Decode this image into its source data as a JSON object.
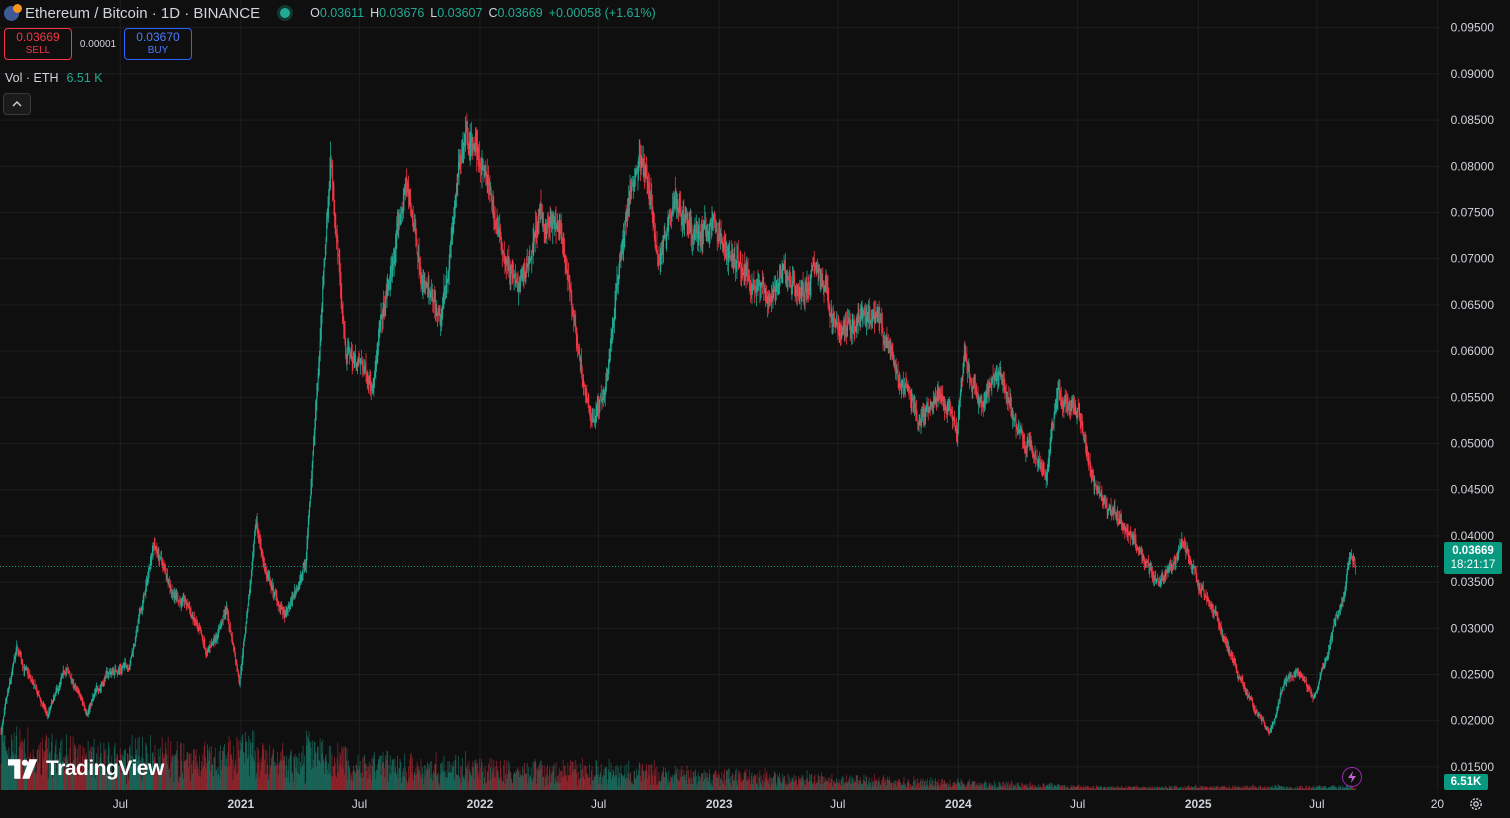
{
  "header": {
    "title": "Ethereum / Bitcoin · 1D · BINANCE",
    "ohlc": {
      "o_label": "O",
      "o_value": "0.03611",
      "h_label": "H",
      "h_value": "0.03676",
      "l_label": "L",
      "l_value": "0.03607",
      "c_label": "C",
      "c_value": "0.03669",
      "change": "+0.00058 (+1.61%)"
    }
  },
  "trade": {
    "sell_price": "0.03669",
    "sell_label": "SELL",
    "spread": "0.00001",
    "buy_price": "0.03670",
    "buy_label": "BUY"
  },
  "volume_legend": {
    "label": "Vol · ETH",
    "value": "6.51 K"
  },
  "logo": {
    "text": "TradingView"
  },
  "price_label": {
    "price": "0.03669",
    "countdown": "18:21:17"
  },
  "volume_label": "6.51K",
  "colors": {
    "background": "#0f0f0f",
    "up": "#22ab94",
    "down": "#f23645",
    "grid": "#1e1e1e",
    "axis_text": "#d1d4dc",
    "last_price": "#089981"
  },
  "icons": [
    "coin-icon",
    "live-dot-icon",
    "chevron-up-icon",
    "tradingview-logo-icon",
    "lightning-icon",
    "gear-icon"
  ],
  "chart_data": {
    "type": "candlestick",
    "symbol": "Ethereum / Bitcoin",
    "interval": "1D",
    "exchange": "BINANCE",
    "y_axis_ticks": [
      "0.09500",
      "0.09000",
      "0.08500",
      "0.08000",
      "0.07500",
      "0.07000",
      "0.06500",
      "0.06000",
      "0.05500",
      "0.05000",
      "0.04500",
      "0.04000",
      "0.03500",
      "0.03000",
      "0.02500",
      "0.02000",
      "0.01500"
    ],
    "y_tick_values": [
      0.095,
      0.09,
      0.085,
      0.08,
      0.075,
      0.07,
      0.065,
      0.06,
      0.055,
      0.05,
      0.045,
      0.04,
      0.035,
      0.03,
      0.025,
      0.02,
      0.015
    ],
    "ylim": [
      0.0125,
      0.098
    ],
    "x_ticks": [
      {
        "label": "Jul",
        "date": "2020-07-01"
      },
      {
        "label": "2021",
        "date": "2021-01-01"
      },
      {
        "label": "Jul",
        "date": "2021-07-01"
      },
      {
        "label": "2022",
        "date": "2022-01-01"
      },
      {
        "label": "Jul",
        "date": "2022-07-01"
      },
      {
        "label": "2023",
        "date": "2023-01-01"
      },
      {
        "label": "Jul",
        "date": "2023-07-01"
      },
      {
        "label": "2024",
        "date": "2024-01-01"
      },
      {
        "label": "Jul",
        "date": "2024-07-01"
      },
      {
        "label": "2025",
        "date": "2025-01-01"
      },
      {
        "label": "Jul",
        "date": "2025-07-01"
      },
      {
        "label": "20",
        "date": "2026-01-01"
      }
    ],
    "xlim": [
      "2020-01-01",
      "2026-01-01"
    ],
    "last_price": 0.03669,
    "close_series": [
      {
        "date": "2020-01-01",
        "close": 0.0188
      },
      {
        "date": "2020-01-25",
        "close": 0.0275
      },
      {
        "date": "2020-03-12",
        "close": 0.0205
      },
      {
        "date": "2020-04-10",
        "close": 0.0255
      },
      {
        "date": "2020-05-10",
        "close": 0.021
      },
      {
        "date": "2020-06-10",
        "close": 0.025
      },
      {
        "date": "2020-07-15",
        "close": 0.0262
      },
      {
        "date": "2020-08-10",
        "close": 0.0345
      },
      {
        "date": "2020-08-20",
        "close": 0.0395
      },
      {
        "date": "2020-09-20",
        "close": 0.034
      },
      {
        "date": "2020-10-15",
        "close": 0.032
      },
      {
        "date": "2020-11-10",
        "close": 0.027
      },
      {
        "date": "2020-12-10",
        "close": 0.032
      },
      {
        "date": "2020-12-30",
        "close": 0.0245
      },
      {
        "date": "2021-01-25",
        "close": 0.041
      },
      {
        "date": "2021-02-10",
        "close": 0.0355
      },
      {
        "date": "2021-03-10",
        "close": 0.031
      },
      {
        "date": "2021-04-10",
        "close": 0.037
      },
      {
        "date": "2021-05-05",
        "close": 0.065
      },
      {
        "date": "2021-05-18",
        "close": 0.081
      },
      {
        "date": "2021-06-10",
        "close": 0.06
      },
      {
        "date": "2021-07-20",
        "close": 0.057
      },
      {
        "date": "2021-08-20",
        "close": 0.069
      },
      {
        "date": "2021-09-10",
        "close": 0.078
      },
      {
        "date": "2021-10-10",
        "close": 0.067
      },
      {
        "date": "2021-11-01",
        "close": 0.062
      },
      {
        "date": "2021-12-10",
        "close": 0.085
      },
      {
        "date": "2022-01-05",
        "close": 0.08
      },
      {
        "date": "2022-02-01",
        "close": 0.072
      },
      {
        "date": "2022-03-01",
        "close": 0.066
      },
      {
        "date": "2022-04-01",
        "close": 0.074
      },
      {
        "date": "2022-05-01",
        "close": 0.073
      },
      {
        "date": "2022-06-01",
        "close": 0.06
      },
      {
        "date": "2022-06-18",
        "close": 0.052
      },
      {
        "date": "2022-07-10",
        "close": 0.056
      },
      {
        "date": "2022-08-10",
        "close": 0.074
      },
      {
        "date": "2022-09-05",
        "close": 0.082
      },
      {
        "date": "2022-09-30",
        "close": 0.07
      },
      {
        "date": "2022-10-25",
        "close": 0.078
      },
      {
        "date": "2022-11-20",
        "close": 0.072
      },
      {
        "date": "2022-12-20",
        "close": 0.074
      },
      {
        "date": "2023-01-20",
        "close": 0.07
      },
      {
        "date": "2023-02-20",
        "close": 0.068
      },
      {
        "date": "2023-03-15",
        "close": 0.066
      },
      {
        "date": "2023-04-10",
        "close": 0.068
      },
      {
        "date": "2023-05-10",
        "close": 0.0665
      },
      {
        "date": "2023-06-01",
        "close": 0.069
      },
      {
        "date": "2023-07-01",
        "close": 0.062
      },
      {
        "date": "2023-08-01",
        "close": 0.063
      },
      {
        "date": "2023-09-01",
        "close": 0.063
      },
      {
        "date": "2023-10-01",
        "close": 0.057
      },
      {
        "date": "2023-11-01",
        "close": 0.053
      },
      {
        "date": "2023-12-01",
        "close": 0.055
      },
      {
        "date": "2023-12-30",
        "close": 0.051
      },
      {
        "date": "2024-01-10",
        "close": 0.059
      },
      {
        "date": "2024-02-01",
        "close": 0.054
      },
      {
        "date": "2024-03-05",
        "close": 0.058
      },
      {
        "date": "2024-04-01",
        "close": 0.051
      },
      {
        "date": "2024-05-15",
        "close": 0.047
      },
      {
        "date": "2024-06-01",
        "close": 0.056
      },
      {
        "date": "2024-07-01",
        "close": 0.053
      },
      {
        "date": "2024-08-01",
        "close": 0.045
      },
      {
        "date": "2024-09-01",
        "close": 0.042
      },
      {
        "date": "2024-10-01",
        "close": 0.0385
      },
      {
        "date": "2024-11-01",
        "close": 0.035
      },
      {
        "date": "2024-12-10",
        "close": 0.039
      },
      {
        "date": "2025-01-01",
        "close": 0.035
      },
      {
        "date": "2025-02-01",
        "close": 0.031
      },
      {
        "date": "2025-03-01",
        "close": 0.025
      },
      {
        "date": "2025-04-01",
        "close": 0.021
      },
      {
        "date": "2025-04-20",
        "close": 0.0185
      },
      {
        "date": "2025-05-10",
        "close": 0.0235
      },
      {
        "date": "2025-06-01",
        "close": 0.0255
      },
      {
        "date": "2025-06-25",
        "close": 0.0225
      },
      {
        "date": "2025-07-15",
        "close": 0.0265
      },
      {
        "date": "2025-07-30",
        "close": 0.031
      },
      {
        "date": "2025-08-10",
        "close": 0.033
      },
      {
        "date": "2025-08-22",
        "close": 0.0385
      },
      {
        "date": "2025-08-29",
        "close": 0.03669
      }
    ],
    "last_volume_label": "6.51K"
  }
}
